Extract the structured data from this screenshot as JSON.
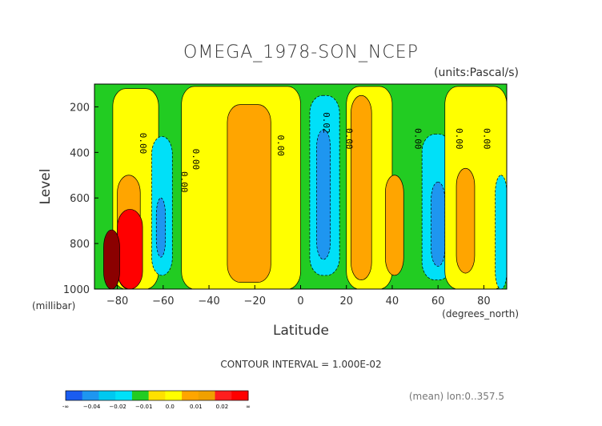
{
  "chart_data": {
    "type": "heatmap",
    "title": "OMEGA_1978-SON_NCEP",
    "units_note": "(units:Pascal/s)",
    "xlabel": "Latitude",
    "x_unit_label": "(degrees_north)",
    "ylabel": "Level",
    "y_unit_label": "(millibar)",
    "xlim": [
      -90,
      90
    ],
    "ylim": [
      1000,
      100
    ],
    "x_ticks": [
      -80,
      -60,
      -40,
      -20,
      0,
      20,
      40,
      60,
      80
    ],
    "x_tick_labels": [
      "−80",
      "−60",
      "−40",
      "−20",
      "0",
      "20",
      "40",
      "60",
      "80"
    ],
    "y_ticks": [
      200,
      400,
      600,
      800,
      1000
    ],
    "y_tick_labels": [
      "200",
      "400",
      "600",
      "800",
      "1000"
    ],
    "contour_interval_text": "CONTOUR INTERVAL = 1.000E-02",
    "mean_note": "(mean) lon:0..357.5",
    "contour_labels": [
      {
        "text": "0.00",
        "lat": -70,
        "lev": 360
      },
      {
        "text": "0.00",
        "lat": -47,
        "lev": 430
      },
      {
        "text": "0.00",
        "lat": -52,
        "lev": 530
      },
      {
        "text": "0.00",
        "lat": -10,
        "lev": 370
      },
      {
        "text": "0.02",
        "lat": 10,
        "lev": 270
      },
      {
        "text": "0.00",
        "lat": 20,
        "lev": 340
      },
      {
        "text": "0.00",
        "lat": 50,
        "lev": 340
      },
      {
        "text": "0.00",
        "lat": 68,
        "lev": 340
      },
      {
        "text": "0.00",
        "lat": 80,
        "lev": 340
      }
    ],
    "colorbar": {
      "bins": [
        {
          "color": "#1a5cf0"
        },
        {
          "color": "#1e96f0"
        },
        {
          "color": "#00c8f0"
        },
        {
          "color": "#00e0f8"
        },
        {
          "color": "#22cc22"
        },
        {
          "color": "#ffe000"
        },
        {
          "color": "#ffff00"
        },
        {
          "color": "#ffa500"
        },
        {
          "color": "#f0a000"
        },
        {
          "color": "#ff1e1e"
        },
        {
          "color": "#ff0000"
        }
      ],
      "labels": [
        "-∞",
        "−0.04",
        "−0.02",
        "−0.01",
        "0.0",
        "0.01",
        "0.02",
        "∞"
      ]
    },
    "regions": [
      {
        "band": "green",
        "lat": [
          -90,
          90
        ],
        "lev": [
          100,
          1000
        ]
      },
      {
        "band": "yellow",
        "lat": [
          -82,
          -62
        ],
        "lev": [
          120,
          1000
        ]
      },
      {
        "band": "cyan",
        "lat": [
          -65,
          -56
        ],
        "lev": [
          330,
          940
        ]
      },
      {
        "band": "blue",
        "lat": [
          -63,
          -59
        ],
        "lev": [
          600,
          860
        ]
      },
      {
        "band": "yellow",
        "lat": [
          -52,
          0
        ],
        "lev": [
          110,
          1000
        ]
      },
      {
        "band": "orange",
        "lat": [
          -32,
          -13
        ],
        "lev": [
          190,
          970
        ]
      },
      {
        "band": "cyan",
        "lat": [
          4,
          17
        ],
        "lev": [
          150,
          940
        ]
      },
      {
        "band": "blue",
        "lat": [
          7,
          13
        ],
        "lev": [
          300,
          870
        ]
      },
      {
        "band": "yellow",
        "lat": [
          20,
          40
        ],
        "lev": [
          110,
          1000
        ]
      },
      {
        "band": "orange",
        "lat": [
          22,
          31
        ],
        "lev": [
          150,
          960
        ]
      },
      {
        "band": "orange",
        "lat": [
          37,
          45
        ],
        "lev": [
          500,
          940
        ]
      },
      {
        "band": "cyan",
        "lat": [
          53,
          66
        ],
        "lev": [
          320,
          960
        ]
      },
      {
        "band": "blue",
        "lat": [
          57,
          63
        ],
        "lev": [
          530,
          900
        ]
      },
      {
        "band": "yellow",
        "lat": [
          63,
          90
        ],
        "lev": [
          110,
          1000
        ]
      },
      {
        "band": "orange",
        "lat": [
          68,
          76
        ],
        "lev": [
          470,
          930
        ]
      },
      {
        "band": "cyan",
        "lat": [
          85,
          90
        ],
        "lev": [
          500,
          1000
        ]
      },
      {
        "band": "orange",
        "lat": [
          -80,
          -70
        ],
        "lev": [
          500,
          1000
        ]
      },
      {
        "band": "red",
        "lat": [
          -80,
          -69
        ],
        "lev": [
          650,
          1000
        ]
      },
      {
        "band": "darkred",
        "lat": [
          -86,
          -79
        ],
        "lev": [
          740,
          1000
        ]
      }
    ]
  }
}
